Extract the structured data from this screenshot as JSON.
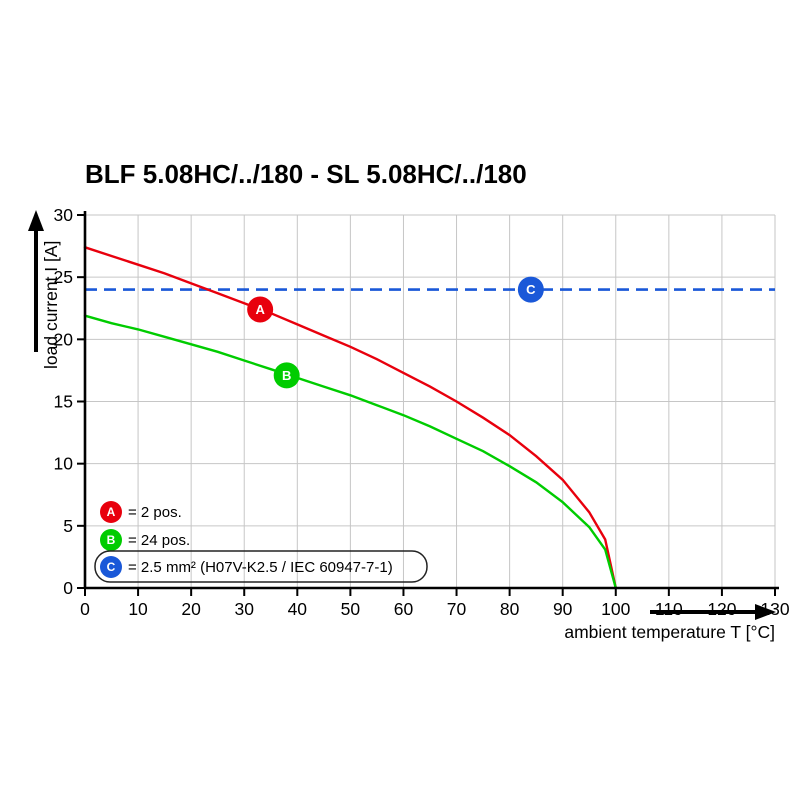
{
  "chart_data": {
    "type": "line",
    "title": "BLF 5.08HC/../180 - SL 5.08HC/../180",
    "xlabel": "ambient temperature T [°C]",
    "ylabel": "load current I [A]",
    "xlim": [
      0,
      130
    ],
    "ylim": [
      0,
      30
    ],
    "x_ticks": [
      0,
      10,
      20,
      30,
      40,
      50,
      60,
      70,
      80,
      90,
      100,
      110,
      120,
      130
    ],
    "y_ticks": [
      0,
      5,
      10,
      15,
      20,
      25,
      30
    ],
    "grid": true,
    "series": [
      {
        "name": "A",
        "legend_label": "= 2 pos.",
        "color": "#e8000d",
        "style": "solid",
        "x": [
          0,
          5,
          10,
          15,
          20,
          25,
          30,
          35,
          40,
          45,
          50,
          55,
          60,
          65,
          70,
          75,
          80,
          85,
          90,
          95,
          98,
          100
        ],
        "y": [
          27.4,
          26.7,
          26.0,
          25.3,
          24.5,
          23.7,
          22.9,
          22.1,
          21.2,
          20.3,
          19.4,
          18.4,
          17.3,
          16.2,
          15.0,
          13.7,
          12.3,
          10.6,
          8.7,
          6.1,
          3.9,
          0
        ]
      },
      {
        "name": "B",
        "legend_label": "= 24 pos.",
        "color": "#00cc00",
        "style": "solid",
        "x": [
          0,
          5,
          10,
          15,
          20,
          25,
          30,
          35,
          40,
          45,
          50,
          55,
          60,
          65,
          70,
          75,
          80,
          85,
          90,
          95,
          98,
          100
        ],
        "y": [
          21.9,
          21.3,
          20.8,
          20.2,
          19.6,
          19.0,
          18.3,
          17.6,
          16.9,
          16.2,
          15.5,
          14.7,
          13.9,
          13.0,
          12.0,
          11.0,
          9.8,
          8.5,
          6.9,
          4.9,
          3.1,
          0
        ]
      },
      {
        "name": "C",
        "legend_label": "= 2.5 mm² (H07V-K2.5 / IEC 60947-7-1)",
        "color": "#1a58d8",
        "style": "dashed-horizontal",
        "value": 24
      }
    ],
    "markers": [
      {
        "letter": "A",
        "x": 33,
        "y": 22.4,
        "color": "#e8000d"
      },
      {
        "letter": "B",
        "x": 38,
        "y": 17.1,
        "color": "#00cc00"
      },
      {
        "letter": "C",
        "x": 84,
        "y": 24.0,
        "color": "#1a58d8"
      }
    ],
    "legend": [
      {
        "letter": "A",
        "color": "#e8000d",
        "label": "= 2 pos.",
        "boxed": false
      },
      {
        "letter": "B",
        "color": "#00cc00",
        "label": "= 24 pos.",
        "boxed": false
      },
      {
        "letter": "C",
        "color": "#1a58d8",
        "label": "= 2.5 mm² (H07V-K2.5 / IEC 60947-7-1)",
        "boxed": true
      }
    ],
    "colors": {
      "grid": "#c6c6c6",
      "axis": "#000000",
      "background": "#ffffff"
    }
  }
}
